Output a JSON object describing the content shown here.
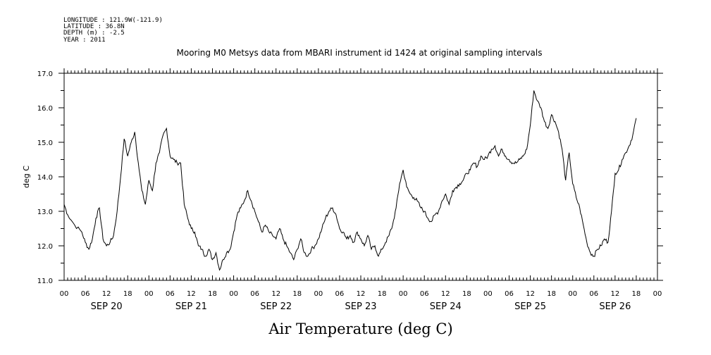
{
  "header": {
    "longitude": "LONGITUDE : 121.9W(-121.9)",
    "latitude": "LATITUDE : 36.8N",
    "depth": "DEPTH (m) : -2.5",
    "year": "YEAR : 2011"
  },
  "chart_data": {
    "type": "line",
    "title": "Mooring M0 Metsys data from MBARI instrument id 1424 at original sampling intervals",
    "xlabel": "Air Temperature (deg C)",
    "ylabel": "deg C",
    "ylim": [
      11.0,
      17.0
    ],
    "xlim_hours": [
      0,
      168
    ],
    "y_ticks": [
      "11.0",
      "12.0",
      "13.0",
      "14.0",
      "15.0",
      "16.0",
      "17.0"
    ],
    "x_hour_ticks": [
      "00",
      "06",
      "12",
      "18",
      "00",
      "06",
      "12",
      "18",
      "00",
      "06",
      "12",
      "18",
      "00",
      "06",
      "12",
      "18",
      "00",
      "06",
      "12",
      "18",
      "00",
      "06",
      "12",
      "18",
      "00",
      "06",
      "12",
      "18",
      "00"
    ],
    "x_day_labels": [
      "SEP 20",
      "SEP 21",
      "SEP 22",
      "SEP 23",
      "SEP 24",
      "SEP 25",
      "SEP 26"
    ],
    "grid": false,
    "series": [
      {
        "values": [
          [
            0,
            13.2
          ],
          [
            1,
            12.9
          ],
          [
            3,
            12.6
          ],
          [
            5,
            12.4
          ],
          [
            6,
            12.1
          ],
          [
            7,
            11.9
          ],
          [
            8,
            12.2
          ],
          [
            9,
            12.8
          ],
          [
            10,
            13.1
          ],
          [
            11,
            12.2
          ],
          [
            12,
            12.0
          ],
          [
            13,
            12.1
          ],
          [
            14,
            12.3
          ],
          [
            15,
            13.0
          ],
          [
            16,
            14.0
          ],
          [
            17,
            15.1
          ],
          [
            18,
            14.6
          ],
          [
            19,
            15.0
          ],
          [
            20,
            15.3
          ],
          [
            21,
            14.4
          ],
          [
            22,
            13.6
          ],
          [
            23,
            13.2
          ],
          [
            24,
            13.9
          ],
          [
            25,
            13.6
          ],
          [
            26,
            14.4
          ],
          [
            27,
            14.7
          ],
          [
            28,
            15.2
          ],
          [
            29,
            15.4
          ],
          [
            30,
            14.6
          ],
          [
            31,
            14.5
          ],
          [
            32,
            14.4
          ],
          [
            33,
            14.4
          ],
          [
            34,
            13.2
          ],
          [
            35,
            12.8
          ],
          [
            36,
            12.5
          ],
          [
            37,
            12.4
          ],
          [
            38,
            12.0
          ],
          [
            39,
            11.9
          ],
          [
            40,
            11.7
          ],
          [
            41,
            11.9
          ],
          [
            42,
            11.6
          ],
          [
            43,
            11.8
          ],
          [
            44,
            11.3
          ],
          [
            45,
            11.6
          ],
          [
            46,
            11.8
          ],
          [
            47,
            11.9
          ],
          [
            48,
            12.4
          ],
          [
            49,
            12.9
          ],
          [
            50,
            13.1
          ],
          [
            51,
            13.3
          ],
          [
            52,
            13.6
          ],
          [
            53,
            13.3
          ],
          [
            54,
            13.0
          ],
          [
            55,
            12.7
          ],
          [
            56,
            12.4
          ],
          [
            57,
            12.6
          ],
          [
            58,
            12.4
          ],
          [
            59,
            12.3
          ],
          [
            60,
            12.2
          ],
          [
            61,
            12.5
          ],
          [
            62,
            12.2
          ],
          [
            63,
            12.0
          ],
          [
            64,
            11.8
          ],
          [
            65,
            11.6
          ],
          [
            66,
            11.9
          ],
          [
            67,
            12.2
          ],
          [
            68,
            11.8
          ],
          [
            69,
            11.7
          ],
          [
            70,
            11.9
          ],
          [
            71,
            12.0
          ],
          [
            72,
            12.2
          ],
          [
            73,
            12.5
          ],
          [
            74,
            12.8
          ],
          [
            75,
            13.0
          ],
          [
            76,
            13.1
          ],
          [
            77,
            12.9
          ],
          [
            78,
            12.5
          ],
          [
            79,
            12.4
          ],
          [
            80,
            12.2
          ],
          [
            81,
            12.3
          ],
          [
            82,
            12.1
          ],
          [
            83,
            12.4
          ],
          [
            84,
            12.2
          ],
          [
            85,
            12.0
          ],
          [
            86,
            12.3
          ],
          [
            87,
            11.9
          ],
          [
            88,
            12.0
          ],
          [
            89,
            11.7
          ],
          [
            90,
            11.9
          ],
          [
            91,
            12.1
          ],
          [
            92,
            12.3
          ],
          [
            93,
            12.6
          ],
          [
            94,
            13.1
          ],
          [
            95,
            13.8
          ],
          [
            96,
            14.2
          ],
          [
            97,
            13.7
          ],
          [
            98,
            13.5
          ],
          [
            99,
            13.4
          ],
          [
            100,
            13.3
          ],
          [
            101,
            13.1
          ],
          [
            102,
            13.0
          ],
          [
            103,
            12.8
          ],
          [
            104,
            12.7
          ],
          [
            105,
            12.9
          ],
          [
            106,
            13.0
          ],
          [
            107,
            13.3
          ],
          [
            108,
            13.5
          ],
          [
            109,
            13.2
          ],
          [
            110,
            13.6
          ],
          [
            111,
            13.7
          ],
          [
            112,
            13.8
          ],
          [
            113,
            13.9
          ],
          [
            114,
            14.1
          ],
          [
            115,
            14.2
          ],
          [
            116,
            14.4
          ],
          [
            117,
            14.3
          ],
          [
            118,
            14.6
          ],
          [
            119,
            14.5
          ],
          [
            120,
            14.6
          ],
          [
            121,
            14.8
          ],
          [
            122,
            14.9
          ],
          [
            123,
            14.6
          ],
          [
            124,
            14.8
          ],
          [
            125,
            14.6
          ],
          [
            126,
            14.5
          ],
          [
            127,
            14.4
          ],
          [
            128,
            14.4
          ],
          [
            129,
            14.5
          ],
          [
            130,
            14.6
          ],
          [
            131,
            14.8
          ],
          [
            132,
            15.5
          ],
          [
            133,
            16.5
          ],
          [
            134,
            16.2
          ],
          [
            135,
            16.0
          ],
          [
            136,
            15.6
          ],
          [
            137,
            15.4
          ],
          [
            138,
            15.8
          ],
          [
            139,
            15.6
          ],
          [
            140,
            15.3
          ],
          [
            141,
            14.8
          ],
          [
            142,
            13.9
          ],
          [
            143,
            14.7
          ],
          [
            144,
            13.8
          ],
          [
            145,
            13.4
          ],
          [
            146,
            13.1
          ],
          [
            147,
            12.6
          ],
          [
            148,
            12.1
          ],
          [
            149,
            11.8
          ],
          [
            150,
            11.7
          ],
          [
            151,
            11.9
          ],
          [
            152,
            12.0
          ],
          [
            153,
            12.2
          ],
          [
            154,
            12.1
          ],
          [
            155,
            13.0
          ],
          [
            156,
            14.1
          ],
          [
            157,
            14.2
          ],
          [
            158,
            14.5
          ],
          [
            159,
            14.7
          ],
          [
            160,
            14.9
          ],
          [
            161,
            15.2
          ],
          [
            162,
            15.7
          ]
        ]
      }
    ]
  }
}
